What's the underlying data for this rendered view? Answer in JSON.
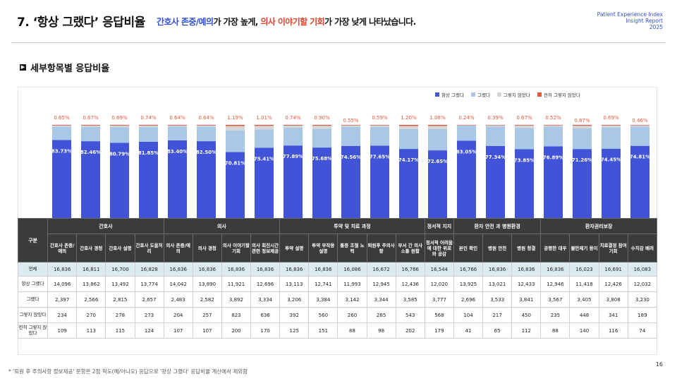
{
  "header": {
    "title": "7. ‘항상 그랬다’ 응답비율",
    "subtitle_part1": "간호사 존중/예의",
    "subtitle_part2": "가 가장 높게, ",
    "subtitle_part3": "의사 이야기할 기회",
    "subtitle_part4": "가 가장 낮게 나타났습니다.",
    "brand_line1": "Patient Experience Index",
    "brand_line2": "Insight Report",
    "brand_line3": "2025"
  },
  "section_title": "세부항목별 응답비율",
  "section_marker": "▶",
  "footnote": "* '퇴원 후 주의사항 정보제공' 문항은 2점 척도(예/아니오) 응답으로 '항상 그랬다' 응답비율 계산에서 제외함",
  "page_number": "16",
  "colors": {
    "always": "#4153d6",
    "yes": "#a9c7e6",
    "not_so": "#d6d6d6",
    "never": "#e7553a",
    "header_bg": "#3b3b3b",
    "total_row_bg": "#dcebf1"
  },
  "table": {
    "corner_label": "구분",
    "groups": [
      {
        "label": "간호사",
        "span": 4
      },
      {
        "label": "의사",
        "span": 4
      },
      {
        "label": "투약 및 치료 과정",
        "span": 5
      },
      {
        "label": "정서적 지지",
        "span": 1
      },
      {
        "label": "환자 안전 과 병원환경",
        "span": 3
      },
      {
        "label": "환자권리보장",
        "span": 4
      }
    ],
    "columns": [
      "간호사 존중/예의",
      "간호사 경청",
      "간호사 설명",
      "간호사 도움처리",
      "의사 존중/예의",
      "의사 경청",
      "의사 이야기할 기회",
      "의사 회진시간 관련 정보제공",
      "투약 설명",
      "투약 부작용 설명",
      "통증 조절 노력",
      "퇴원후 주의사항",
      "부서 간 의사소통 원활",
      "정서적 어려움에 대한 위로와 공감",
      "본인 확인",
      "병원 안전",
      "병원 청결",
      "공평한 대우",
      "불만제기 용이",
      "치료결정 참여기회",
      "수치감 배려"
    ],
    "rows": [
      {
        "label": "전체",
        "values": [
          "16,836",
          "16,811",
          "16,700",
          "16,828",
          "16,836",
          "16,836",
          "16,836",
          "16,836",
          "16,836",
          "16,836",
          "16,086",
          "16,672",
          "16,766",
          "16,544",
          "16,766",
          "16,836",
          "16,836",
          "16,836",
          "16,023",
          "16,691",
          "16,083"
        ]
      },
      {
        "label": "항상 그랬다",
        "values": [
          "14,096",
          "13,862",
          "13,492",
          "13,774",
          "14,042",
          "13,890",
          "11,921",
          "12,696",
          "13,113",
          "12,741",
          "11,993",
          "12,945",
          "12,436",
          "12,020",
          "13,925",
          "13,021",
          "12,433",
          "12,946",
          "11,418",
          "12,426",
          "12,032"
        ]
      },
      {
        "label": "그랬다",
        "values": [
          "2,397",
          "2,566",
          "2,815",
          "2,657",
          "2,483",
          "2,582",
          "3,892",
          "3,334",
          "3,206",
          "3,384",
          "3,142",
          "3,344",
          "3,585",
          "3,777",
          "2,696",
          "3,533",
          "3,841",
          "3,567",
          "3,405",
          "3,808",
          "3,230"
        ]
      },
      {
        "label": "그렇지 않았다",
        "values": [
          "234",
          "270",
          "278",
          "273",
          "204",
          "257",
          "823",
          "636",
          "392",
          "560",
          "260",
          "285",
          "543",
          "568",
          "104",
          "217",
          "450",
          "235",
          "448",
          "341",
          "189"
        ]
      },
      {
        "label": "전혀 그렇지 않았다",
        "values": [
          "109",
          "113",
          "115",
          "124",
          "107",
          "107",
          "200",
          "170",
          "125",
          "151",
          "88",
          "98",
          "202",
          "179",
          "41",
          "65",
          "112",
          "88",
          "140",
          "116",
          "74"
        ]
      }
    ]
  },
  "chart_data": {
    "type": "bar",
    "stacked": true,
    "normalized_to": 100,
    "legend_position": "top-right",
    "categories": [
      "간호사 존중/예의",
      "간호사 경청",
      "간호사 설명",
      "간호사 도움처리",
      "의사 존중/예의",
      "의사 경청",
      "의사 이야기할 기회",
      "의사 회진시간 관련 정보제공",
      "투약 설명",
      "투약 부작용 설명",
      "통증 조절 노력",
      "퇴원후 주의사항",
      "부서 간 의사소통 원활",
      "정서적 어려움에 대한 위로와 공감",
      "본인 확인",
      "병원 안전",
      "병원 청결",
      "공평한 대우",
      "불만제기 용이",
      "치료결정 참여기회",
      "수치감 배려"
    ],
    "series": [
      {
        "name": "항상 그랬다",
        "values": [
          83.73,
          82.46,
          80.79,
          81.85,
          83.4,
          82.5,
          70.81,
          75.41,
          77.89,
          75.68,
          74.56,
          77.65,
          74.17,
          72.65,
          83.05,
          77.34,
          73.85,
          76.89,
          71.26,
          74.45,
          74.81
        ],
        "labels": [
          "83.73%",
          "82.46%",
          "80.79%",
          "81.85%",
          "83.40%",
          "82.50%",
          "70.81%",
          "75.41%",
          "77.89%",
          "75.68%",
          "74.56%",
          "77.65%",
          "74.17%",
          "72.65%",
          "83.05%",
          "77.34%",
          "73.85%",
          "76.89%",
          "71.26%",
          "74.45%",
          "74.81%"
        ]
      },
      {
        "name": "그랬다",
        "values": [
          14.24,
          15.26,
          16.86,
          15.79,
          14.75,
          15.34,
          23.12,
          19.8,
          19.04,
          20.1,
          19.53,
          20.06,
          21.38,
          22.83,
          16.08,
          20.98,
          22.81,
          21.19,
          21.25,
          22.81,
          20.08
        ]
      },
      {
        "name": "그렇지 않았다",
        "values": [
          1.39,
          1.61,
          1.66,
          1.62,
          1.21,
          1.53,
          4.89,
          3.78,
          2.33,
          3.33,
          1.62,
          1.71,
          3.24,
          3.43,
          0.62,
          1.29,
          2.67,
          1.4,
          2.8,
          2.04,
          1.18
        ]
      },
      {
        "name": "전혀 그렇지 않았다",
        "values": [
          0.65,
          0.67,
          0.69,
          0.74,
          0.64,
          0.64,
          1.19,
          1.01,
          0.74,
          0.9,
          0.55,
          0.59,
          1.2,
          1.08,
          0.24,
          0.39,
          0.67,
          0.52,
          0.87,
          0.69,
          0.46
        ],
        "labels": [
          "0.65%",
          "0.67%",
          "0.69%",
          "0.74%",
          "0.64%",
          "0.64%",
          "1.19%",
          "1.01%",
          "0.74%",
          "0.90%",
          "0.55%",
          "0.59%",
          "1.20%",
          "1.08%",
          "0.24%",
          "0.39%",
          "0.67%",
          "0.52%",
          "0.87%",
          "0.69%",
          "0.46%"
        ]
      }
    ]
  }
}
